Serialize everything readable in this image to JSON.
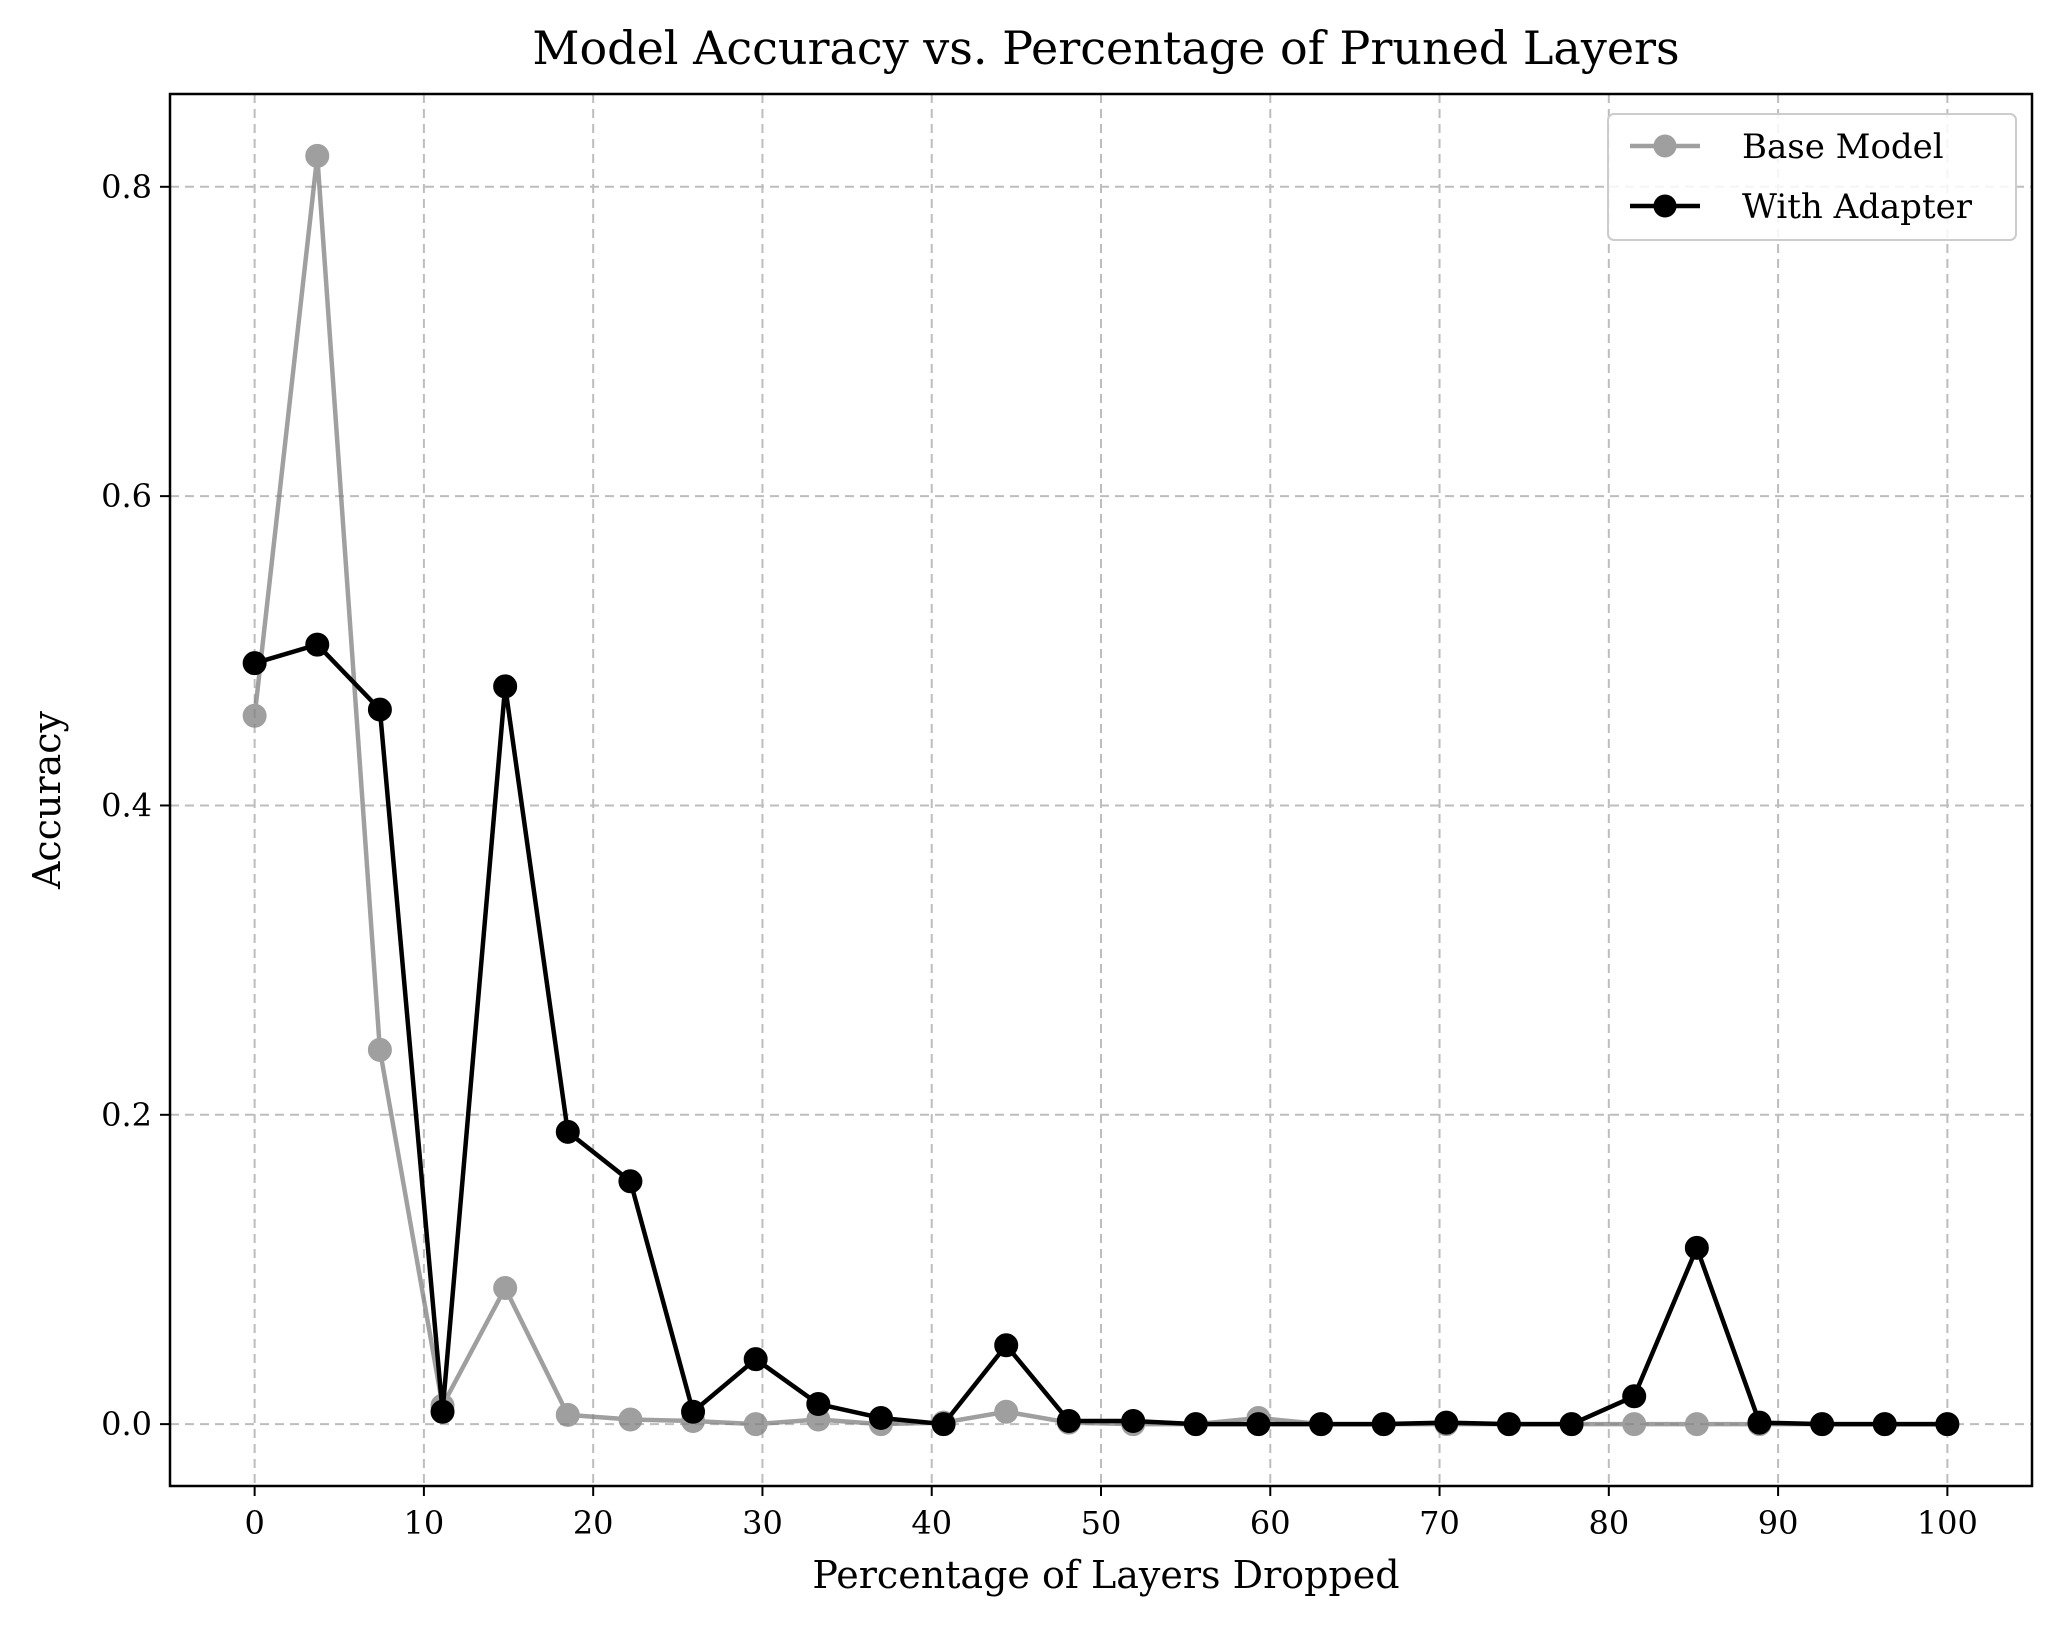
{
  "chart_data": {
    "type": "line",
    "title": "Model Accuracy vs. Percentage of Pruned Layers",
    "xlabel": "Percentage of Layers Dropped",
    "ylabel": "Accuracy",
    "xlim": [
      -5,
      105
    ],
    "ylim": [
      -0.04,
      0.86
    ],
    "xticks": [
      0,
      10,
      20,
      30,
      40,
      50,
      60,
      70,
      80,
      90,
      100
    ],
    "xtick_labels": [
      "0",
      "10",
      "20",
      "30",
      "40",
      "50",
      "60",
      "70",
      "80",
      "90",
      "100"
    ],
    "yticks": [
      0.0,
      0.2,
      0.4,
      0.6,
      0.8
    ],
    "ytick_labels": [
      "0.0",
      "0.2",
      "0.4",
      "0.6",
      "0.8"
    ],
    "grid": true,
    "legend_position": "top-right",
    "x": [
      0,
      3.7,
      7.4,
      11.1,
      14.8,
      18.5,
      22.2,
      25.9,
      29.6,
      33.3,
      37.0,
      40.7,
      44.4,
      48.1,
      51.9,
      55.6,
      59.3,
      63.0,
      66.7,
      70.4,
      74.1,
      77.8,
      81.5,
      85.2,
      88.9,
      92.6,
      96.3,
      100
    ],
    "series": [
      {
        "name": "Base Model",
        "color": "#808080",
        "opacity": 0.75,
        "values": [
          0.458,
          0.82,
          0.242,
          0.012,
          0.088,
          0.006,
          0.003,
          0.002,
          0.0,
          0.003,
          0.0,
          0.001,
          0.008,
          0.001,
          0.0,
          0.0,
          0.004,
          0.0,
          0.0,
          0.0,
          0.0,
          0.0,
          0.0,
          0.0,
          0.0,
          0.0,
          0.0,
          0.0
        ]
      },
      {
        "name": "With Adapter",
        "color": "#000000",
        "opacity": 1,
        "values": [
          0.492,
          0.504,
          0.462,
          0.008,
          0.477,
          0.189,
          0.157,
          0.008,
          0.042,
          0.013,
          0.004,
          0.0,
          0.051,
          0.002,
          0.002,
          0.0,
          0.0,
          0.0,
          0.0,
          0.001,
          0.0,
          0.0,
          0.018,
          0.114,
          0.001,
          0.0,
          0.0,
          0.0
        ]
      }
    ]
  }
}
